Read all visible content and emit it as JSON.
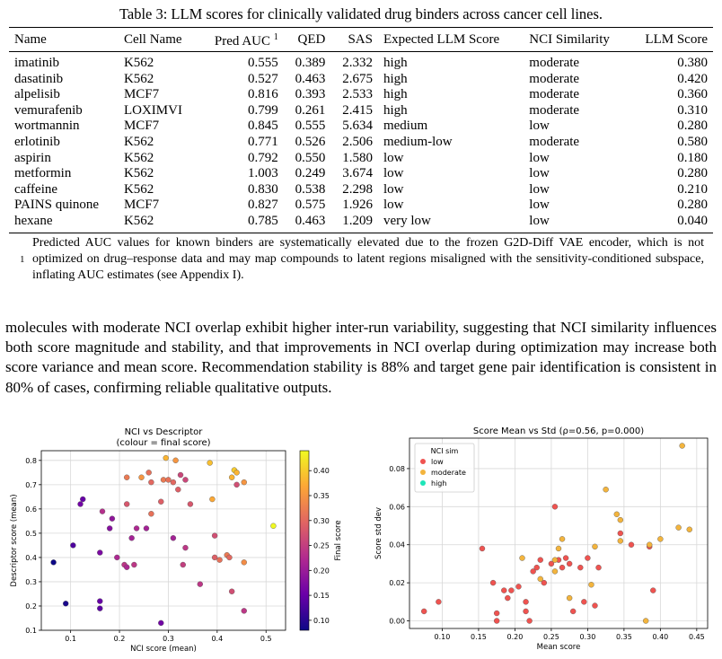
{
  "table": {
    "caption": "Table 3: LLM scores for clinically validated drug binders across cancer cell lines.",
    "headers": [
      "Name",
      "Cell Name",
      "Pred AUC",
      "QED",
      "SAS",
      "Expected LLM Score",
      "NCI Similarity",
      "LLM Score"
    ],
    "header_sup": "1",
    "rows": [
      [
        "imatinib",
        "K562",
        "0.555",
        "0.389",
        "2.332",
        "high",
        "moderate",
        "0.380"
      ],
      [
        "dasatinib",
        "K562",
        "0.527",
        "0.463",
        "2.675",
        "high",
        "moderate",
        "0.420"
      ],
      [
        "alpelisib",
        "MCF7",
        "0.816",
        "0.393",
        "2.533",
        "high",
        "moderate",
        "0.360"
      ],
      [
        "vemurafenib",
        "LOXIMVI",
        "0.799",
        "0.261",
        "2.415",
        "high",
        "moderate",
        "0.310"
      ],
      [
        "wortmannin",
        "MCF7",
        "0.845",
        "0.555",
        "5.634",
        "medium",
        "low",
        "0.280"
      ],
      [
        "erlotinib",
        "K562",
        "0.771",
        "0.526",
        "2.506",
        "medium-low",
        "moderate",
        "0.580"
      ],
      [
        "aspirin",
        "K562",
        "0.792",
        "0.550",
        "1.580",
        "low",
        "low",
        "0.180"
      ],
      [
        "metformin",
        "K562",
        "1.003",
        "0.249",
        "3.674",
        "low",
        "low",
        "0.280"
      ],
      [
        "caffeine",
        "K562",
        "0.830",
        "0.538",
        "2.298",
        "low",
        "low",
        "0.210"
      ],
      [
        "PAINS quinone",
        "MCF7",
        "0.827",
        "0.575",
        "1.926",
        "low",
        "low",
        "0.280"
      ],
      [
        "hexane",
        "K562",
        "0.785",
        "0.463",
        "1.209",
        "very low",
        "low",
        "0.040"
      ]
    ],
    "footnote_mark": "1",
    "footnote": "Predicted AUC values for known binders are systematically elevated due to the frozen G2D-Diff VAE encoder, which is not optimized on drug–response data and may map compounds to latent regions misaligned with the sensitivity-conditioned subspace, inflating AUC estimates (see Appendix I)."
  },
  "paragraph": "molecules with moderate NCI overlap exhibit higher inter-run variability, suggesting that NCI similarity influences both score magnitude and stability, and that improvements in NCI overlap during optimization may increase both score variance and mean score. Recommendation stability is 88% and target gene pair identification is consistent in 80% of cases, confirming reliable qualitative outputs.",
  "chart_data": [
    {
      "type": "scatter",
      "title": "NCI vs Descriptor",
      "subtitle": "(colour = final score)",
      "xlabel": "NCI score (mean)",
      "ylabel": "Descriptor score (mean)",
      "colorbar_label": "Final score",
      "xlim": [
        0.04,
        0.54
      ],
      "ylim": [
        0.1,
        0.84
      ],
      "xticks": [
        "0.1",
        "0.2",
        "0.3",
        "0.4",
        "0.5"
      ],
      "yticks": [
        "0.1",
        "0.2",
        "0.3",
        "0.4",
        "0.5",
        "0.6",
        "0.7",
        "0.8"
      ],
      "cticks": [
        "0.10",
        "0.15",
        "0.20",
        "0.25",
        "0.30",
        "0.35",
        "0.40"
      ],
      "clim": [
        0.08,
        0.44
      ],
      "colormap": [
        "#0d0887",
        "#6a00a8",
        "#b12a90",
        "#e16462",
        "#fca636",
        "#f0f921"
      ],
      "grid": true,
      "points": [
        [
          0.065,
          0.38,
          0.08
        ],
        [
          0.09,
          0.21,
          0.09
        ],
        [
          0.105,
          0.45,
          0.13
        ],
        [
          0.12,
          0.62,
          0.16
        ],
        [
          0.125,
          0.64,
          0.15
        ],
        [
          0.16,
          0.19,
          0.14
        ],
        [
          0.16,
          0.22,
          0.15
        ],
        [
          0.16,
          0.42,
          0.17
        ],
        [
          0.165,
          0.59,
          0.23
        ],
        [
          0.18,
          0.52,
          0.18
        ],
        [
          0.185,
          0.56,
          0.19
        ],
        [
          0.195,
          0.4,
          0.22
        ],
        [
          0.21,
          0.37,
          0.24
        ],
        [
          0.215,
          0.36,
          0.22
        ],
        [
          0.215,
          0.62,
          0.28
        ],
        [
          0.215,
          0.73,
          0.32
        ],
        [
          0.225,
          0.48,
          0.21
        ],
        [
          0.23,
          0.37,
          0.24
        ],
        [
          0.235,
          0.52,
          0.22
        ],
        [
          0.245,
          0.73,
          0.35
        ],
        [
          0.255,
          0.52,
          0.21
        ],
        [
          0.26,
          0.75,
          0.31
        ],
        [
          0.265,
          0.58,
          0.31
        ],
        [
          0.265,
          0.71,
          0.3
        ],
        [
          0.285,
          0.13,
          0.16
        ],
        [
          0.285,
          0.63,
          0.29
        ],
        [
          0.29,
          0.72,
          0.32
        ],
        [
          0.295,
          0.81,
          0.38
        ],
        [
          0.3,
          0.72,
          0.31
        ],
        [
          0.31,
          0.71,
          0.3
        ],
        [
          0.31,
          0.48,
          0.21
        ],
        [
          0.315,
          0.8,
          0.35
        ],
        [
          0.32,
          0.68,
          0.29
        ],
        [
          0.325,
          0.74,
          0.26
        ],
        [
          0.33,
          0.37,
          0.25
        ],
        [
          0.335,
          0.44,
          0.24
        ],
        [
          0.335,
          0.72,
          0.26
        ],
        [
          0.345,
          0.62,
          0.28
        ],
        [
          0.365,
          0.29,
          0.24
        ],
        [
          0.385,
          0.79,
          0.39
        ],
        [
          0.39,
          0.64,
          0.37
        ],
        [
          0.395,
          0.49,
          0.27
        ],
        [
          0.395,
          0.4,
          0.29
        ],
        [
          0.405,
          0.39,
          0.31
        ],
        [
          0.42,
          0.41,
          0.32
        ],
        [
          0.425,
          0.4,
          0.3
        ],
        [
          0.43,
          0.26,
          0.27
        ],
        [
          0.43,
          0.73,
          0.38
        ],
        [
          0.435,
          0.76,
          0.4
        ],
        [
          0.44,
          0.7,
          0.27
        ],
        [
          0.44,
          0.75,
          0.38
        ],
        [
          0.455,
          0.71,
          0.35
        ],
        [
          0.455,
          0.38,
          0.34
        ],
        [
          0.455,
          0.18,
          0.24
        ],
        [
          0.515,
          0.53,
          0.44
        ]
      ]
    },
    {
      "type": "scatter",
      "title": "Score Mean vs Std (ρ=0.56, p=0.000)",
      "xlabel": "Mean score",
      "ylabel": "Score std dev",
      "xlim": [
        0.055,
        0.465
      ],
      "ylim": [
        -0.004,
        0.096
      ],
      "xticks": [
        "0.10",
        "0.15",
        "0.20",
        "0.25",
        "0.30",
        "0.35",
        "0.40",
        "0.45"
      ],
      "yticks": [
        "0.00",
        "0.02",
        "0.04",
        "0.06",
        "0.08"
      ],
      "legend_title": "NCI sim",
      "legend_position": "upper left",
      "grid": true,
      "series": [
        {
          "name": "low",
          "color": "#ef5350",
          "points": [
            [
              0.075,
              0.005
            ],
            [
              0.095,
              0.01
            ],
            [
              0.155,
              0.038
            ],
            [
              0.17,
              0.02
            ],
            [
              0.175,
              0.004
            ],
            [
              0.175,
              0.0
            ],
            [
              0.185,
              0.016
            ],
            [
              0.19,
              0.012
            ],
            [
              0.195,
              0.016
            ],
            [
              0.205,
              0.018
            ],
            [
              0.215,
              0.005
            ],
            [
              0.215,
              0.01
            ],
            [
              0.22,
              0.0
            ],
            [
              0.225,
              0.026
            ],
            [
              0.23,
              0.028
            ],
            [
              0.235,
              0.032
            ],
            [
              0.24,
              0.02
            ],
            [
              0.25,
              0.03
            ],
            [
              0.255,
              0.06
            ],
            [
              0.26,
              0.032
            ],
            [
              0.265,
              0.028
            ],
            [
              0.27,
              0.033
            ],
            [
              0.275,
              0.03
            ],
            [
              0.28,
              0.005
            ],
            [
              0.29,
              0.028
            ],
            [
              0.295,
              0.01
            ],
            [
              0.3,
              0.033
            ],
            [
              0.31,
              0.008
            ],
            [
              0.315,
              0.028
            ],
            [
              0.345,
              0.046
            ],
            [
              0.36,
              0.04
            ],
            [
              0.385,
              0.039
            ],
            [
              0.39,
              0.016
            ]
          ]
        },
        {
          "name": "moderate",
          "color": "#f3b43d",
          "points": [
            [
              0.21,
              0.033
            ],
            [
              0.235,
              0.022
            ],
            [
              0.255,
              0.032
            ],
            [
              0.255,
              0.026
            ],
            [
              0.26,
              0.038
            ],
            [
              0.265,
              0.043
            ],
            [
              0.275,
              0.012
            ],
            [
              0.305,
              0.019
            ],
            [
              0.31,
              0.039
            ],
            [
              0.325,
              0.069
            ],
            [
              0.34,
              0.056
            ],
            [
              0.345,
              0.053
            ],
            [
              0.345,
              0.042
            ],
            [
              0.38,
              0.0
            ],
            [
              0.385,
              0.04
            ],
            [
              0.4,
              0.043
            ],
            [
              0.425,
              0.049
            ],
            [
              0.43,
              0.092
            ],
            [
              0.44,
              0.048
            ]
          ]
        },
        {
          "name": "high",
          "color": "#1de5b8",
          "points": []
        }
      ]
    }
  ]
}
